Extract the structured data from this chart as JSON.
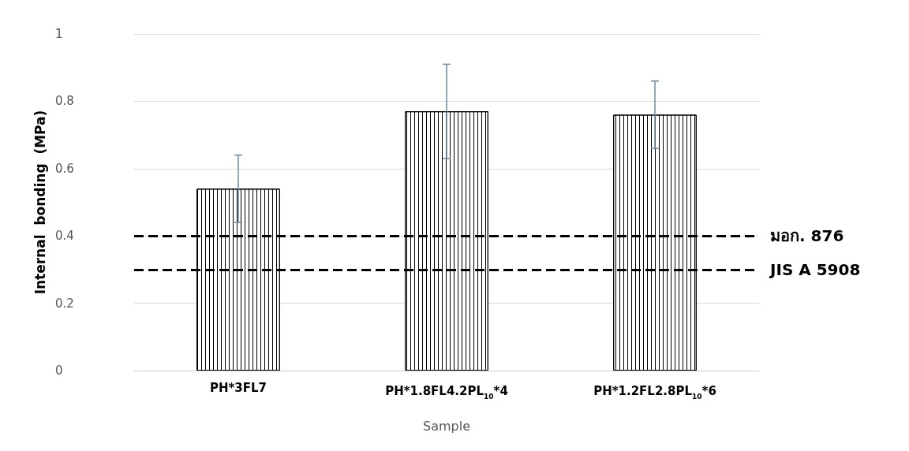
{
  "chart_data": {
    "type": "bar",
    "xlabel": "Sample",
    "ylabel": "Internal  bonding  (MPa)",
    "categories": [
      "PH*3FL7",
      "PH*1.8FL4.2PL$_{10}$*4",
      "PH*1.2FL2.8PL$_{10}$*6"
    ],
    "values": [
      0.54,
      0.77,
      0.76
    ],
    "errors": [
      0.1,
      0.14,
      0.1
    ],
    "color": "#ffffff",
    "ylim": [
      0,
      1
    ],
    "yticks": [
      0,
      0.2,
      0.4,
      0.6,
      0.8,
      1
    ],
    "grid": "y",
    "ref_lines": [
      {
        "axis": "y",
        "value": 0.4,
        "label": "มอก. 876",
        "color": "#000000",
        "line_style": "dashed"
      },
      {
        "axis": "y",
        "value": 0.3,
        "label": "JIS A 5908",
        "color": "#000000",
        "line_style": "dashed"
      }
    ]
  }
}
